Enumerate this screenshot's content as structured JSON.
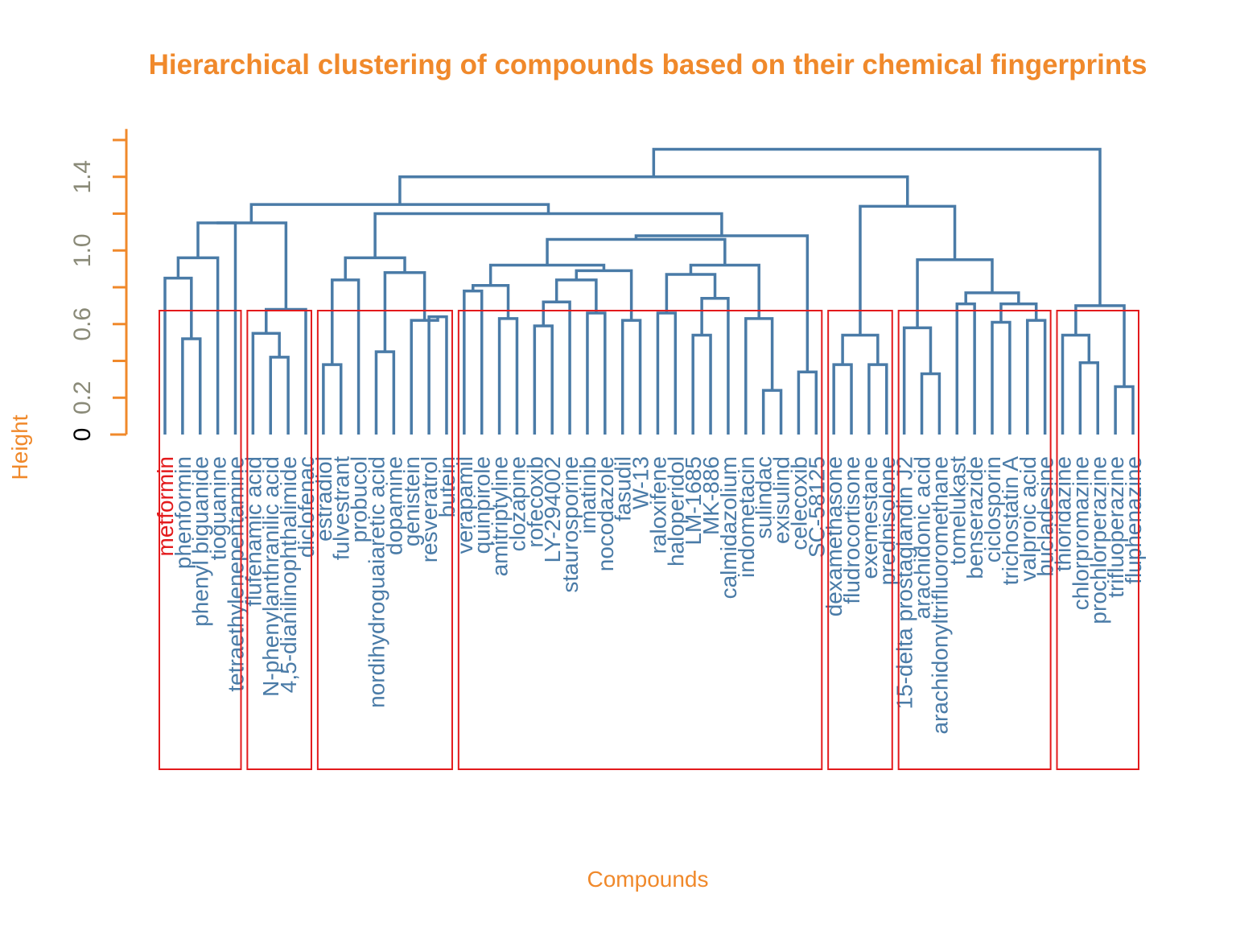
{
  "chart_data": {
    "type": "dendrogram",
    "title": "Hierarchical clustering of compounds based on their chemical fingerprints",
    "xlabel": "Compounds",
    "ylabel": "Height",
    "ylim": [
      0,
      1.6
    ],
    "y_ticks": [
      0.0,
      0.2,
      0.4,
      0.6,
      0.8,
      1.0,
      1.2,
      1.4,
      1.6
    ],
    "y_tick_labels": [
      "0",
      "0.2",
      "0.6",
      "1.0",
      "1.4"
    ],
    "cut_height": 0.67,
    "num_clusters": 7,
    "leaves": [
      "metformin",
      "phenformin",
      "phenyl biguanide",
      "tioguanine",
      "tetraethylenepentamine",
      "flufenamic acid",
      "N-phenylanthranilic acid",
      "4,5-dianilinophthalimide",
      "diclofenac",
      "estradiol",
      "fulvestrant",
      "probucol",
      "nordihydroguaiaretic acid",
      "dopamine",
      "genistein",
      "resveratrol",
      "butein",
      "verapamil",
      "quinpirole",
      "amitriptyline",
      "clozapine",
      "rofecoxib",
      "LY-294002",
      "staurosporine",
      "imatinib",
      "nocodazole",
      "fasudil",
      "W-13",
      "raloxifene",
      "haloperidol",
      "LM-1685",
      "MK-886",
      "calmidazolium",
      "indometacin",
      "sulindac",
      "exisulind",
      "celecoxib",
      "SC-58125",
      "dexamethasone",
      "fludrocortisone",
      "exemestane",
      "prednisolone",
      "15-delta prostaglandin J2",
      "arachidonic acid",
      "arachidonyltrifluoromethane",
      "tomelukast",
      "benserazide",
      "ciclosporin",
      "trichostatin A",
      "valproic acid",
      "bucladesine",
      "thioridazine",
      "chlorpromazine",
      "prochlorperazine",
      "trifluoperazine",
      "fluphenazine"
    ],
    "merges": [
      {
        "height": 0.52,
        "children": [
          "phenformin",
          "phenyl biguanide"
        ]
      },
      {
        "height": 0.85,
        "children": [
          "metformin",
          "phenformin | phenyl biguanide"
        ]
      },
      {
        "height": 0.96,
        "children": [
          "metformin | phenformin | phenyl biguanide",
          "tioguanine"
        ]
      },
      {
        "height": 1.15,
        "children": [
          "metformin ... tioguanine",
          "tetraethylenepentamine"
        ]
      },
      {
        "height": 0.42,
        "children": [
          "N-phenylanthranilic acid",
          "4,5-dianilinophthalimide"
        ]
      },
      {
        "height": 0.55,
        "children": [
          "flufenamic acid",
          "N-phenylanthranilic acid | 4,5-dianilinophthalimide"
        ]
      },
      {
        "height": 0.68,
        "children": [
          "flufenamic acid ... 4,5-dianilinophthalimide",
          "diclofenac"
        ]
      },
      {
        "height": 1.15,
        "children": [
          "metformin ... tetraethylenepentamine",
          "flufenamic acid ... diclofenac"
        ]
      },
      {
        "height": 0.38,
        "children": [
          "estradiol",
          "fulvestrant"
        ]
      },
      {
        "height": 0.84,
        "children": [
          "estradiol | fulvestrant",
          "probucol"
        ]
      },
      {
        "height": 0.45,
        "children": [
          "nordihydroguaiaretic acid",
          "dopamine"
        ]
      },
      {
        "height": 0.64,
        "children": [
          "resveratrol",
          "butein"
        ]
      },
      {
        "height": 0.62,
        "children": [
          "genistein",
          "resveratrol | butein"
        ]
      },
      {
        "height": 0.88,
        "children": [
          "nordihydroguaiaretic acid | dopamine",
          "genistein | resveratrol | butein"
        ]
      },
      {
        "height": 0.96,
        "children": [
          "estradiol ... probucol",
          "nordihydroguaiaretic acid ... butein"
        ]
      },
      {
        "height": 0.78,
        "children": [
          "verapamil",
          "quinpirole"
        ]
      },
      {
        "height": 0.63,
        "children": [
          "amitriptyline",
          "clozapine"
        ]
      },
      {
        "height": 0.81,
        "children": [
          "verapamil | quinpirole",
          "amitriptyline | clozapine"
        ]
      },
      {
        "height": 0.59,
        "children": [
          "rofecoxib",
          "LY-294002"
        ]
      },
      {
        "height": 0.72,
        "children": [
          "rofecoxib | LY-294002",
          "staurosporine"
        ]
      },
      {
        "height": 0.66,
        "children": [
          "imatinib",
          "nocodazole"
        ]
      },
      {
        "height": 0.84,
        "children": [
          "rofecoxib ... staurosporine",
          "imatinib | nocodazole"
        ]
      },
      {
        "height": 0.62,
        "children": [
          "fasudil",
          "W-13"
        ]
      },
      {
        "height": 0.89,
        "children": [
          "rofecoxib ... nocodazole",
          "fasudil | W-13"
        ]
      },
      {
        "height": 0.92,
        "children": [
          "verapamil ... clozapine",
          "rofecoxib ... W-13"
        ]
      },
      {
        "height": 0.54,
        "children": [
          "LM-1685",
          "MK-886"
        ]
      },
      {
        "height": 0.74,
        "children": [
          "LM-1685 | MK-886",
          "calmidazolium"
        ]
      },
      {
        "height": 0.66,
        "children": [
          "raloxifene",
          "haloperidol"
        ]
      },
      {
        "height": 0.87,
        "children": [
          "raloxifene | haloperidol",
          "LM-1685 ... calmidazolium"
        ]
      },
      {
        "height": 0.24,
        "children": [
          "sulindac",
          "exisulind"
        ]
      },
      {
        "height": 0.63,
        "children": [
          "indometacin",
          "sulindac | exisulind"
        ]
      },
      {
        "height": 0.92,
        "children": [
          "raloxifene ... calmidazolium",
          "indometacin ... exisulind"
        ]
      },
      {
        "height": 1.06,
        "children": [
          "verapamil ... W-13",
          "raloxifene ... exisulind"
        ]
      },
      {
        "height": 0.34,
        "children": [
          "celecoxib",
          "SC-58125"
        ]
      },
      {
        "height": 1.08,
        "children": [
          "verapamil ... exisulind",
          "celecoxib | SC-58125"
        ]
      },
      {
        "height": 1.2,
        "children": [
          "estradiol ... butein",
          "verapamil ... SC-58125"
        ]
      },
      {
        "height": 1.25,
        "children": [
          "metformin ... diclofenac",
          "estradiol ... SC-58125"
        ]
      },
      {
        "height": 0.38,
        "children": [
          "dexamethasone",
          "fludrocortisone"
        ]
      },
      {
        "height": 0.38,
        "children": [
          "exemestane",
          "prednisolone"
        ]
      },
      {
        "height": 0.54,
        "children": [
          "dexamethasone | fludrocortisone",
          "exemestane | prednisolone"
        ]
      },
      {
        "height": 0.33,
        "children": [
          "arachidonic acid",
          "arachidonyltrifluoromethane"
        ]
      },
      {
        "height": 0.58,
        "children": [
          "15-delta prostaglandin J2",
          "arachidonic acid | arachidonyltrifluoromethane"
        ]
      },
      {
        "height": 0.71,
        "children": [
          "tomelukast",
          "benserazide"
        ]
      },
      {
        "height": 0.61,
        "children": [
          "ciclosporin",
          "trichostatin A"
        ]
      },
      {
        "height": 0.62,
        "children": [
          "valproic acid",
          "bucladesine"
        ]
      },
      {
        "height": 0.71,
        "children": [
          "ciclosporin | trichostatin A",
          "valproic acid | bucladesine"
        ]
      },
      {
        "height": 0.77,
        "children": [
          "tomelukast | benserazide",
          "ciclosporin ... bucladesine"
        ]
      },
      {
        "height": 0.95,
        "children": [
          "15-delta prostaglandin J2 ... arachidonyltrifluoromethane",
          "tomelukast ... bucladesine"
        ]
      },
      {
        "height": 1.24,
        "children": [
          "dexamethasone ... prednisolone",
          "15-delta prostaglandin J2 ... bucladesine"
        ]
      },
      {
        "height": 1.4,
        "children": [
          "metformin ... SC-58125",
          "dexamethasone ... bucladesine"
        ]
      },
      {
        "height": 0.39,
        "children": [
          "chlorpromazine",
          "prochlorperazine"
        ]
      },
      {
        "height": 0.54,
        "children": [
          "thioridazine",
          "chlorpromazine | prochlorperazine"
        ]
      },
      {
        "height": 0.26,
        "children": [
          "trifluoperazine",
          "fluphenazine"
        ]
      },
      {
        "height": 0.7,
        "children": [
          "thioridazine ... prochlorperazine",
          "trifluoperazine | fluphenazine"
        ]
      },
      {
        "height": 1.55,
        "children": [
          "metformin ... bucladesine",
          "thioridazine ... fluphenazine"
        ]
      }
    ],
    "cluster_boxes": [
      {
        "first_leaf": "metformin",
        "last_leaf": "tetraethylenepentamine"
      },
      {
        "first_leaf": "flufenamic acid",
        "last_leaf": "diclofenac"
      },
      {
        "first_leaf": "estradiol",
        "last_leaf": "butein"
      },
      {
        "first_leaf": "verapamil",
        "last_leaf": "SC-58125"
      },
      {
        "first_leaf": "dexamethasone",
        "last_leaf": "prednisolone"
      },
      {
        "first_leaf": "15-delta prostaglandin J2",
        "last_leaf": "bucladesine"
      },
      {
        "first_leaf": "thioridazine",
        "last_leaf": "fluphenazine"
      }
    ],
    "colors": {
      "branches": "#4a7ba7",
      "labels": "#4a7ba7",
      "title": "#f0892b",
      "axis": "#f0892b",
      "tick_labels": "#8a8a78",
      "cluster_boxes": "#e31a1c",
      "first_leaf_label": "#e31a1c"
    }
  }
}
